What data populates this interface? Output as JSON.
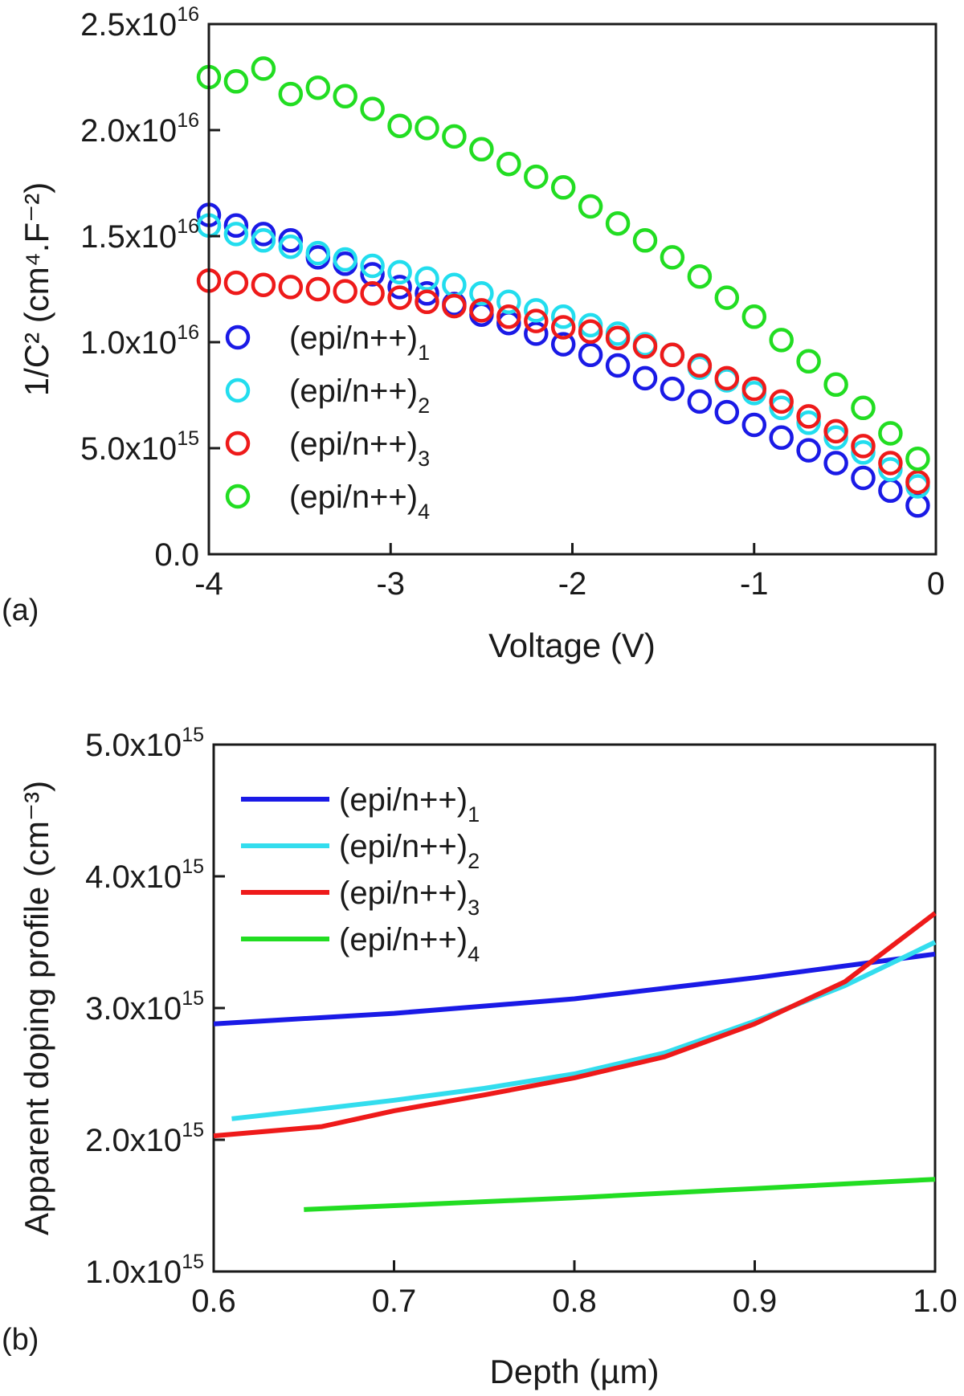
{
  "chart_data": [
    {
      "type": "scatter",
      "panel_label": "(a)",
      "xlabel": "Voltage (V)",
      "ylabel": "1/C² (cm⁴.F⁻²)",
      "xlim": [
        -4,
        0
      ],
      "ylim": [
        0,
        2.5e+16
      ],
      "x_ticks": [
        {
          "value": -4,
          "label": "-4"
        },
        {
          "value": -3,
          "label": "-3"
        },
        {
          "value": -2,
          "label": "-2"
        },
        {
          "value": -1,
          "label": "-1"
        },
        {
          "value": 0,
          "label": "0"
        }
      ],
      "y_ticks": [
        {
          "value": 0,
          "mantissa": "0.0",
          "exp": ""
        },
        {
          "value": 5000000000000000.0,
          "mantissa": "5.0x10",
          "exp": "15"
        },
        {
          "value": 1e+16,
          "mantissa": "1.0x10",
          "exp": "16"
        },
        {
          "value": 1.5e+16,
          "mantissa": "1.5x10",
          "exp": "16"
        },
        {
          "value": 2e+16,
          "mantissa": "2.0x10",
          "exp": "16"
        },
        {
          "value": 2.5e+16,
          "mantissa": "2.5x10",
          "exp": "16"
        }
      ],
      "legend_position": "bottom-left",
      "x": [
        -4.0,
        -3.85,
        -3.7,
        -3.55,
        -3.4,
        -3.25,
        -3.1,
        -2.95,
        -2.8,
        -2.65,
        -2.5,
        -2.35,
        -2.2,
        -2.05,
        -1.9,
        -1.75,
        -1.6,
        -1.45,
        -1.3,
        -1.15,
        -1.0,
        -0.85,
        -0.7,
        -0.55,
        -0.4,
        -0.25,
        -0.1
      ],
      "series": [
        {
          "name": "(epi/n++)",
          "subscript": "1",
          "color": "#1a1ae6",
          "values": [
            1.6e+16,
            1.55e+16,
            1.51e+16,
            1.48e+16,
            1.4e+16,
            1.37e+16,
            1.32e+16,
            1.26e+16,
            1.23e+16,
            1.18e+16,
            1.13e+16,
            1.09e+16,
            1.04e+16,
            9900000000000000.0,
            9400000000000000.0,
            8900000000000000.0,
            8300000000000000.0,
            7800000000000000.0,
            7200000000000000.0,
            6700000000000000.0,
            6100000000000000.0,
            5500000000000000.0,
            4900000000000000.0,
            4300000000000000.0,
            3600000000000000.0,
            3000000000000000.0,
            2300000000000000.0
          ]
        },
        {
          "name": "(epi/n++)",
          "subscript": "2",
          "color": "#22ddee",
          "values": [
            1.55e+16,
            1.51e+16,
            1.48e+16,
            1.45e+16,
            1.42e+16,
            1.39e+16,
            1.36e+16,
            1.33e+16,
            1.3e+16,
            1.27e+16,
            1.23e+16,
            1.19e+16,
            1.15e+16,
            1.12e+16,
            1.08e+16,
            1.04e+16,
            9900000000000000.0,
            9400000000000000.0,
            8800000000000000.0,
            8200000000000000.0,
            7600000000000000.0,
            6900000000000000.0,
            6200000000000000.0,
            5500000000000000.0,
            4800000000000000.0,
            4000000000000000.0,
            3200000000000000.0
          ]
        },
        {
          "name": "(epi/n++)",
          "subscript": "3",
          "color": "#ee1a1a",
          "values": [
            1.29e+16,
            1.28e+16,
            1.27e+16,
            1.26e+16,
            1.25e+16,
            1.24e+16,
            1.23e+16,
            1.21e+16,
            1.19e+16,
            1.17e+16,
            1.15e+16,
            1.12e+16,
            1.1e+16,
            1.07e+16,
            1.05e+16,
            1.02e+16,
            9800000000000000.0,
            9400000000000000.0,
            8900000000000000.0,
            8300000000000000.0,
            7800000000000000.0,
            7200000000000000.0,
            6500000000000000.0,
            5800000000000000.0,
            5100000000000000.0,
            4300000000000000.0,
            3400000000000000.0
          ]
        },
        {
          "name": "(epi/n++)",
          "subscript": "4",
          "color": "#22dd22",
          "values": [
            2.25e+16,
            2.23e+16,
            2.29e+16,
            2.17e+16,
            2.2e+16,
            2.16e+16,
            2.1e+16,
            2.02e+16,
            2.01e+16,
            1.97e+16,
            1.91e+16,
            1.84e+16,
            1.78e+16,
            1.73e+16,
            1.64e+16,
            1.56e+16,
            1.48e+16,
            1.4e+16,
            1.31e+16,
            1.21e+16,
            1.12e+16,
            1.01e+16,
            9100000000000000.0,
            8000000000000000.0,
            6900000000000000.0,
            5700000000000000.0,
            4500000000000000.0
          ]
        }
      ]
    },
    {
      "type": "line",
      "panel_label": "(b)",
      "xlabel": "Depth (µm)",
      "ylabel": "Apparent doping profile (cm⁻³)",
      "xlim": [
        0.6,
        1.0
      ],
      "ylim": [
        1000000000000000.0,
        5000000000000000.0
      ],
      "x_ticks": [
        {
          "value": 0.6,
          "label": "0.6"
        },
        {
          "value": 0.7,
          "label": "0.7"
        },
        {
          "value": 0.8,
          "label": "0.8"
        },
        {
          "value": 0.9,
          "label": "0.9"
        },
        {
          "value": 1.0,
          "label": "1.0"
        }
      ],
      "y_ticks": [
        {
          "value": 1000000000000000.0,
          "mantissa": "1.0x10",
          "exp": "15"
        },
        {
          "value": 2000000000000000.0,
          "mantissa": "2.0x10",
          "exp": "15"
        },
        {
          "value": 3000000000000000.0,
          "mantissa": "3.0x10",
          "exp": "15"
        },
        {
          "value": 4000000000000000.0,
          "mantissa": "4.0x10",
          "exp": "15"
        },
        {
          "value": 5000000000000000.0,
          "mantissa": "5.0x10",
          "exp": "15"
        }
      ],
      "legend_position": "top-left",
      "series": [
        {
          "name": "(epi/n++)",
          "subscript": "1",
          "color": "#1a1ae6",
          "x": [
            0.6,
            0.7,
            0.8,
            0.9,
            1.0
          ],
          "y": [
            2880000000000000.0,
            2960000000000000.0,
            3070000000000000.0,
            3230000000000000.0,
            3410000000000000.0
          ]
        },
        {
          "name": "(epi/n++)",
          "subscript": "2",
          "color": "#33ddee",
          "x": [
            0.61,
            0.65,
            0.7,
            0.75,
            0.8,
            0.85,
            0.9,
            0.95,
            1.0
          ],
          "y": [
            2160000000000000.0,
            2220000000000000.0,
            2300000000000000.0,
            2390000000000000.0,
            2500000000000000.0,
            2660000000000000.0,
            2900000000000000.0,
            3170000000000000.0,
            3500000000000000.0
          ]
        },
        {
          "name": "(epi/n++)",
          "subscript": "3",
          "color": "#ee1a1a",
          "x": [
            0.6,
            0.66,
            0.7,
            0.75,
            0.8,
            0.85,
            0.9,
            0.95,
            1.0
          ],
          "y": [
            2030000000000000.0,
            2100000000000000.0,
            2220000000000000.0,
            2340000000000000.0,
            2470000000000000.0,
            2630000000000000.0,
            2880000000000000.0,
            3200000000000000.0,
            3720000000000000.0
          ]
        },
        {
          "name": "(epi/n++)",
          "subscript": "4",
          "color": "#22dd22",
          "x": [
            0.65,
            0.7,
            0.8,
            0.9,
            1.0
          ],
          "y": [
            1470000000000000.0,
            1500000000000000.0,
            1560000000000000.0,
            1630000000000000.0,
            1700000000000000.0
          ]
        }
      ]
    }
  ]
}
